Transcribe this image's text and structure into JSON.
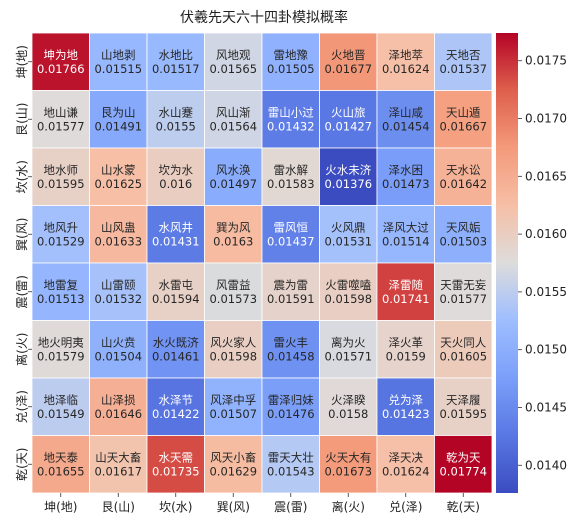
{
  "chart_data": {
    "type": "heatmap",
    "title": "伏羲先天六十四卦模拟概率",
    "x_categories": [
      "坤(地)",
      "艮(山)",
      "坎(水)",
      "巽(风)",
      "震(雷)",
      "离(火)",
      "兑(泽)",
      "乾(天)"
    ],
    "y_categories": [
      "坤(地)",
      "艮(山)",
      "坎(水)",
      "巽(风)",
      "震(雷)",
      "离(火)",
      "兑(泽)",
      "乾(天)"
    ],
    "names": [
      [
        "坤为地",
        "山地剥",
        "水地比",
        "风地观",
        "雷地豫",
        "火地晋",
        "泽地萃",
        "天地否"
      ],
      [
        "地山谦",
        "艮为山",
        "水山蹇",
        "风山渐",
        "雷山小过",
        "火山旅",
        "泽山咸",
        "天山遁"
      ],
      [
        "地水师",
        "山水蒙",
        "坎为水",
        "风水涣",
        "雷水解",
        "火水未济",
        "泽水困",
        "天水讼"
      ],
      [
        "地风升",
        "山风蛊",
        "水风井",
        "巽为风",
        "雷风恒",
        "火风鼎",
        "泽风大过",
        "天风姤"
      ],
      [
        "地雷复",
        "山雷颐",
        "水雷屯",
        "风雷益",
        "震为雷",
        "火雷噬嗑",
        "泽雷随",
        "天雷无妄"
      ],
      [
        "地火明夷",
        "山火贲",
        "水火既济",
        "风火家人",
        "雷火丰",
        "离为火",
        "泽火革",
        "天火同人"
      ],
      [
        "地泽临",
        "山泽损",
        "水泽节",
        "风泽中孚",
        "雷泽归妹",
        "火泽睽",
        "兑为泽",
        "天泽履"
      ],
      [
        "地天泰",
        "山天大畜",
        "水天需",
        "风天小畜",
        "雷天大壮",
        "火天大有",
        "泽天决",
        "乾为天"
      ]
    ],
    "values": [
      [
        0.01766,
        0.01515,
        0.01517,
        0.01565,
        0.01505,
        0.01677,
        0.01624,
        0.01537
      ],
      [
        0.01577,
        0.01491,
        0.0155,
        0.01564,
        0.01432,
        0.01427,
        0.01454,
        0.01667
      ],
      [
        0.01595,
        0.01625,
        0.016,
        0.01497,
        0.01583,
        0.01376,
        0.01473,
        0.01642
      ],
      [
        0.01529,
        0.01633,
        0.01431,
        0.0163,
        0.01437,
        0.01531,
        0.01514,
        0.01503
      ],
      [
        0.01513,
        0.01532,
        0.01594,
        0.01573,
        0.01591,
        0.01598,
        0.01741,
        0.01577
      ],
      [
        0.01579,
        0.01504,
        0.01461,
        0.01598,
        0.01458,
        0.01571,
        0.0159,
        0.01605
      ],
      [
        0.01549,
        0.01646,
        0.01422,
        0.01507,
        0.01476,
        0.0158,
        0.01423,
        0.01595
      ],
      [
        0.01655,
        0.01617,
        0.01735,
        0.01629,
        0.01543,
        0.01673,
        0.01624,
        0.01774
      ]
    ],
    "value_labels": [
      [
        "0.01766",
        "0.01515",
        "0.01517",
        "0.01565",
        "0.01505",
        "0.01677",
        "0.01624",
        "0.01537"
      ],
      [
        "0.01577",
        "0.01491",
        "0.0155",
        "0.01564",
        "0.01432",
        "0.01427",
        "0.01454",
        "0.01667"
      ],
      [
        "0.01595",
        "0.01625",
        "0.016",
        "0.01497",
        "0.01583",
        "0.01376",
        "0.01473",
        "0.01642"
      ],
      [
        "0.01529",
        "0.01633",
        "0.01431",
        "0.0163",
        "0.01437",
        "0.01531",
        "0.01514",
        "0.01503"
      ],
      [
        "0.01513",
        "0.01532",
        "0.01594",
        "0.01573",
        "0.01591",
        "0.01598",
        "0.01741",
        "0.01577"
      ],
      [
        "0.01579",
        "0.01504",
        "0.01461",
        "0.01598",
        "0.01458",
        "0.01571",
        "0.0159",
        "0.01605"
      ],
      [
        "0.01549",
        "0.01646",
        "0.01422",
        "0.01507",
        "0.01476",
        "0.0158",
        "0.01423",
        "0.01595"
      ],
      [
        "0.01655",
        "0.01617",
        "0.01735",
        "0.01629",
        "0.01543",
        "0.01673",
        "0.01624",
        "0.01774"
      ]
    ],
    "colormap": "coolwarm",
    "colorbar_range": [
      0.01376,
      0.01774
    ],
    "colorbar_ticks": [
      "0.0140",
      "0.0145",
      "0.0150",
      "0.0155",
      "0.0160",
      "0.0165",
      "0.0170",
      "0.0175"
    ],
    "colorbar_tick_values": [
      0.014,
      0.0145,
      0.015,
      0.0155,
      0.016,
      0.0165,
      0.017,
      0.0175
    ],
    "grid": true
  }
}
